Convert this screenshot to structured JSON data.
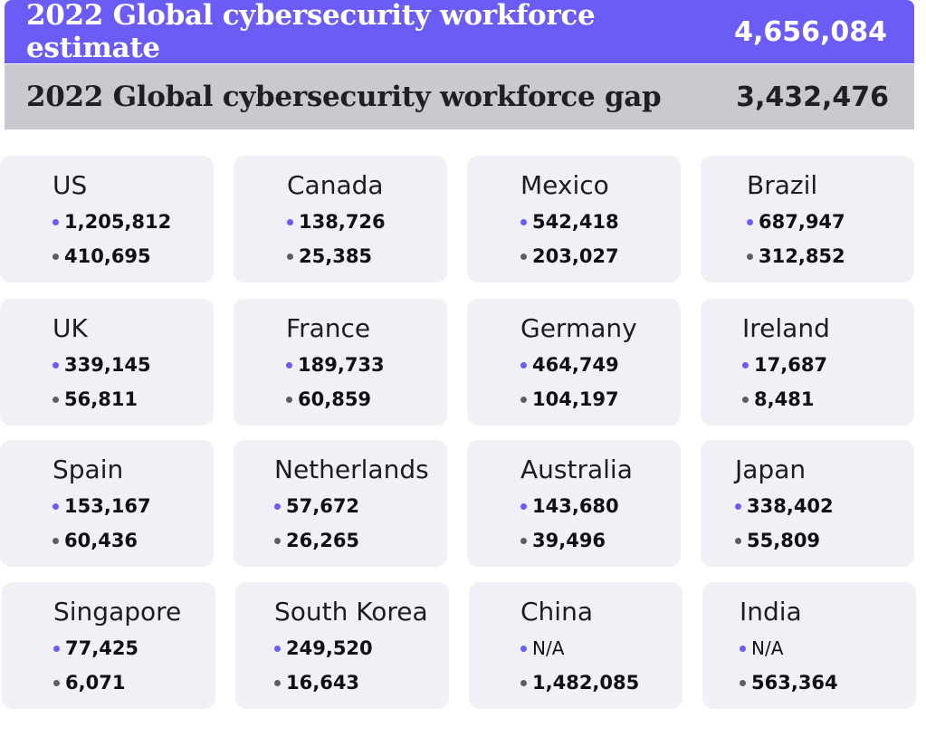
{
  "header": {
    "estimate_label": "2022 Global cybersecurity workforce estimate",
    "estimate_value": "4,656,084",
    "gap_label": "2022 Global cybersecurity workforce gap",
    "gap_value": "3,432,476"
  },
  "colors": {
    "estimate_accent": "#6b5cf5",
    "gap_accent": "#c9c9cf",
    "card_background": "#f0f0f6"
  },
  "countries": [
    {
      "name": "US",
      "estimate": "1,205,812",
      "gap": "410,695"
    },
    {
      "name": "Canada",
      "estimate": "138,726",
      "gap": "25,385"
    },
    {
      "name": "Mexico",
      "estimate": "542,418",
      "gap": "203,027"
    },
    {
      "name": "Brazil",
      "estimate": "687,947",
      "gap": "312,852"
    },
    {
      "name": "UK",
      "estimate": "339,145",
      "gap": "56,811"
    },
    {
      "name": "France",
      "estimate": "189,733",
      "gap": "60,859"
    },
    {
      "name": "Germany",
      "estimate": "464,749",
      "gap": "104,197"
    },
    {
      "name": "Ireland",
      "estimate": "17,687",
      "gap": "8,481"
    },
    {
      "name": "Spain",
      "estimate": "153,167",
      "gap": "60,436"
    },
    {
      "name": "Netherlands",
      "estimate": "57,672",
      "gap": "26,265"
    },
    {
      "name": "Australia",
      "estimate": "143,680",
      "gap": "39,496"
    },
    {
      "name": "Japan",
      "estimate": "338,402",
      "gap": "55,809"
    },
    {
      "name": "Singapore",
      "estimate": "77,425",
      "gap": "6,071"
    },
    {
      "name": "South Korea",
      "estimate": "249,520",
      "gap": "16,643"
    },
    {
      "name": "China",
      "estimate": "N/A",
      "gap": "1,482,085"
    },
    {
      "name": "India",
      "estimate": "N/A",
      "gap": "563,364"
    }
  ]
}
